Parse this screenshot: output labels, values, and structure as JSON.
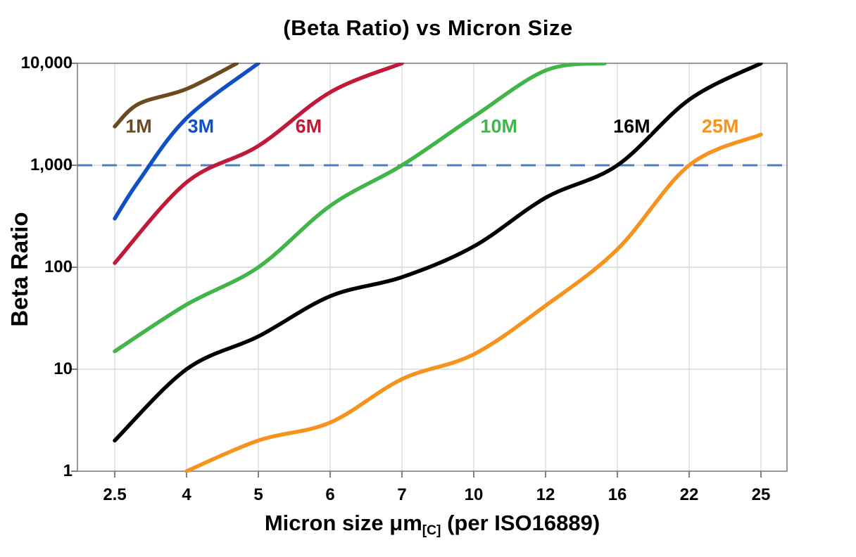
{
  "title": "(Beta Ratio) vs Micron Size",
  "colors": {
    "background": "#ffffff",
    "grid": "#d9d9d9",
    "axis_border": "#7f7f7f",
    "tick_mark": "#7f7f7f",
    "reference_dash": "#4d7ec3",
    "text": "#000000"
  },
  "y_axis": {
    "label": "Beta Ratio",
    "ticks": [
      {
        "label": "10,000",
        "value": 10000
      },
      {
        "label": "1,000",
        "value": 1000
      },
      {
        "label": "100",
        "value": 100
      },
      {
        "label": "10",
        "value": 10
      },
      {
        "label": "1",
        "value": 1
      }
    ]
  },
  "x_axis": {
    "label_pre": "Micron size μm",
    "label_sub": "[C]",
    "label_post": " (per ISO16889)",
    "ticks": [
      "2.5",
      "4",
      "5",
      "6",
      "7",
      "10",
      "12",
      "16",
      "22",
      "25"
    ]
  },
  "chart_data": {
    "type": "line",
    "title": "(Beta Ratio) vs Micron Size",
    "xlabel": "Micron size μm[C] (per ISO16889)",
    "ylabel": "Beta Ratio",
    "x_scale": "categorical-equal-spacing",
    "y_scale": "log",
    "ylim": [
      1,
      10000
    ],
    "grid": true,
    "legend_position": "inline-labels",
    "x_categories": [
      2.5,
      4,
      5,
      6,
      7,
      10,
      12,
      16,
      22,
      25
    ],
    "reference_line": {
      "beta": 1000,
      "style": "dashed",
      "color": "#4d7ec3"
    },
    "series": [
      {
        "name": "1M",
        "color": "#6b4a1f",
        "label_anchor": {
          "micron": 3.0,
          "beta": 2400
        },
        "points": [
          [
            2.5,
            2400
          ],
          [
            3,
            4000
          ],
          [
            4,
            5600
          ],
          [
            4.7,
            10000
          ]
        ]
      },
      {
        "name": "3M",
        "color": "#1150c4",
        "label_anchor": {
          "micron": 4.2,
          "beta": 2400
        },
        "points": [
          [
            2.5,
            300
          ],
          [
            3,
            700
          ],
          [
            4,
            2900
          ],
          [
            5,
            10000
          ]
        ]
      },
      {
        "name": "6M",
        "color": "#c11a38",
        "label_anchor": {
          "micron": 5.7,
          "beta": 2400
        },
        "points": [
          [
            2.5,
            110
          ],
          [
            4,
            680
          ],
          [
            5,
            1550
          ],
          [
            6,
            5200
          ],
          [
            7,
            10000
          ]
        ]
      },
      {
        "name": "10M",
        "color": "#41b549",
        "label_anchor": {
          "micron": 10.7,
          "beta": 2400
        },
        "points": [
          [
            2.5,
            15
          ],
          [
            4,
            43
          ],
          [
            5,
            100
          ],
          [
            6,
            400
          ],
          [
            7,
            1000
          ],
          [
            10,
            3000
          ],
          [
            12,
            8500
          ],
          [
            15.3,
            10000
          ]
        ]
      },
      {
        "name": "16M",
        "color": "#000000",
        "label_anchor": {
          "micron": 17.2,
          "beta": 2400
        },
        "points": [
          [
            2.5,
            2
          ],
          [
            4,
            10
          ],
          [
            5,
            21
          ],
          [
            6,
            52
          ],
          [
            7,
            80
          ],
          [
            10,
            160
          ],
          [
            12,
            480
          ],
          [
            16,
            1000
          ],
          [
            22,
            4400
          ],
          [
            25,
            10000
          ]
        ]
      },
      {
        "name": "25M",
        "color": "#f6921e",
        "label_anchor": {
          "micron": 23.3,
          "beta": 2400
        },
        "points": [
          [
            4,
            1
          ],
          [
            5,
            2
          ],
          [
            6,
            3
          ],
          [
            7,
            8
          ],
          [
            10,
            14
          ],
          [
            12,
            42
          ],
          [
            16,
            150
          ],
          [
            22,
            1000
          ],
          [
            25,
            2000
          ]
        ]
      }
    ]
  }
}
